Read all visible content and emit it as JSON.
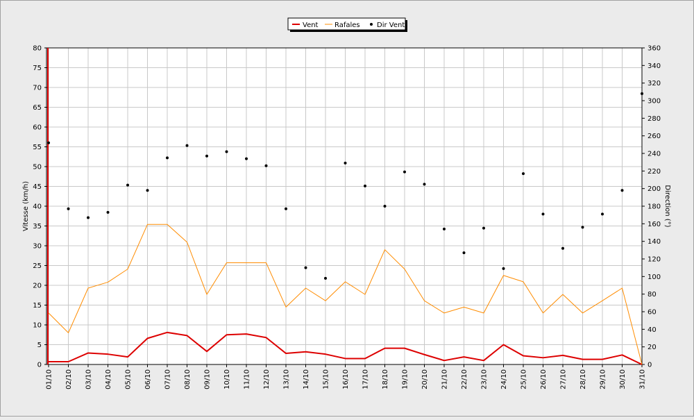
{
  "chart_data": {
    "type": "line",
    "legend": {
      "placement": "top-center",
      "entries": [
        {
          "label": "Vent",
          "color": "#dd0000"
        },
        {
          "label": "Rafales",
          "color": "#ff8c00"
        },
        {
          "label": "Dir Vent",
          "color": "#000000"
        }
      ]
    },
    "ylabel_left": "Vitesse (km/h)",
    "ylabel_right": "Direction (°)",
    "ylim_left": [
      0,
      80
    ],
    "yticks_left": [
      0,
      5,
      10,
      15,
      20,
      25,
      30,
      35,
      40,
      45,
      50,
      55,
      60,
      65,
      70,
      75,
      80
    ],
    "ylim_right": [
      0,
      360
    ],
    "yticks_right": [
      0,
      20,
      40,
      60,
      80,
      100,
      120,
      140,
      160,
      180,
      200,
      220,
      240,
      260,
      280,
      300,
      320,
      340,
      360
    ],
    "grid": true,
    "categories": [
      "01/10",
      "02/10",
      "03/10",
      "04/10",
      "05/10",
      "06/10",
      "07/10",
      "08/10",
      "09/10",
      "10/10",
      "11/10",
      "12/10",
      "13/10",
      "14/10",
      "15/10",
      "16/10",
      "17/10",
      "18/10",
      "19/10",
      "20/10",
      "21/10",
      "22/10",
      "23/10",
      "24/10",
      "25/10",
      "26/10",
      "27/10",
      "28/10",
      "29/10",
      "30/10",
      "31/10"
    ],
    "series": [
      {
        "name": "Vent",
        "axis": "left",
        "color": "#dd0000",
        "values": [
          0.7,
          0.7,
          2.9,
          2.6,
          1.9,
          6.6,
          8.1,
          7.3,
          3.3,
          7.5,
          7.7,
          6.8,
          2.8,
          3.2,
          2.6,
          1.5,
          1.5,
          4.1,
          4.1,
          2.5,
          1.0,
          1.9,
          1.0,
          5.0,
          2.2,
          1.7,
          2.3,
          1.3,
          1.3,
          2.4,
          0.0
        ]
      },
      {
        "name": "Rafales",
        "axis": "left",
        "color": "#ff8c00",
        "values": [
          13.0,
          8.0,
          19.3,
          20.8,
          24.1,
          35.4,
          35.4,
          30.9,
          17.7,
          25.7,
          25.7,
          25.7,
          14.5,
          19.3,
          16.1,
          20.9,
          17.7,
          29.0,
          24.1,
          16.1,
          13.0,
          14.5,
          13.0,
          22.5,
          20.9,
          13.0,
          17.7,
          13.0,
          16.1,
          19.3,
          0.0
        ]
      },
      {
        "name": "Dir Vent",
        "axis": "right",
        "color": "#000000",
        "marker": "dot",
        "values": [
          252,
          177,
          167,
          173,
          204,
          198,
          235,
          249,
          237,
          242,
          234,
          226,
          177,
          110,
          98,
          229,
          203,
          180,
          219,
          205,
          154,
          127,
          155,
          109,
          217,
          171,
          132,
          156,
          171,
          198,
          308
        ]
      }
    ]
  }
}
